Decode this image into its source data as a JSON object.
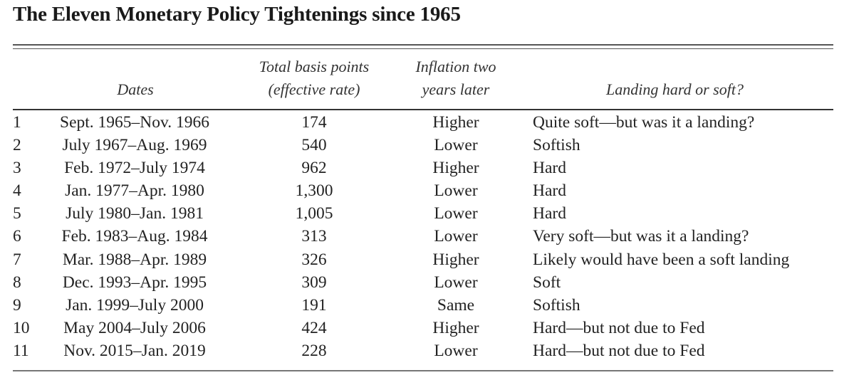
{
  "title": "The Eleven Monetary Policy Tightenings since 1965",
  "headers": {
    "dates": "Dates",
    "basis_points_line1": "Total basis points",
    "basis_points_line2": "(effective rate)",
    "inflation_line1": "Inflation two",
    "inflation_line2": "years later",
    "landing": "Landing hard or soft?"
  },
  "rows": [
    {
      "num": "1",
      "dates": "Sept. 1965–Nov. 1966",
      "bp": "174",
      "inflation": "Higher",
      "landing": "Quite soft—but was it a landing?"
    },
    {
      "num": "2",
      "dates": "July 1967–Aug. 1969",
      "bp": "540",
      "inflation": "Lower",
      "landing": "Softish"
    },
    {
      "num": "3",
      "dates": "Feb. 1972–July 1974",
      "bp": "962",
      "inflation": "Higher",
      "landing": "Hard"
    },
    {
      "num": "4",
      "dates": "Jan. 1977–Apr. 1980",
      "bp": "1,300",
      "inflation": "Lower",
      "landing": "Hard"
    },
    {
      "num": "5",
      "dates": "July 1980–Jan. 1981",
      "bp": "1,005",
      "inflation": "Lower",
      "landing": "Hard"
    },
    {
      "num": "6",
      "dates": "Feb. 1983–Aug. 1984",
      "bp": "313",
      "inflation": "Lower",
      "landing": "Very soft—but was it a landing?"
    },
    {
      "num": "7",
      "dates": "Mar. 1988–Apr. 1989",
      "bp": "326",
      "inflation": "Higher",
      "landing": "Likely would have been a soft landing"
    },
    {
      "num": "8",
      "dates": "Dec. 1993–Apr. 1995",
      "bp": "309",
      "inflation": "Lower",
      "landing": "Soft"
    },
    {
      "num": "9",
      "dates": "Jan. 1999–July 2000",
      "bp": "191",
      "inflation": "Same",
      "landing": "Softish"
    },
    {
      "num": "10",
      "dates": "May 2004–July 2006",
      "bp": "424",
      "inflation": "Higher",
      "landing": "Hard—but not due to Fed"
    },
    {
      "num": "11",
      "dates": "Nov. 2015–Jan. 2019",
      "bp": "228",
      "inflation": "Lower",
      "landing": "Hard—but not due to Fed"
    }
  ]
}
